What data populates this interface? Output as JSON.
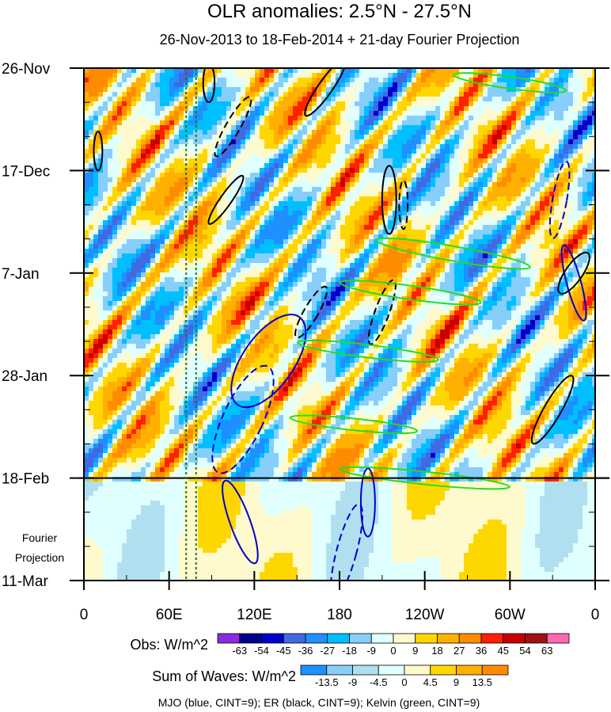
{
  "chart_data": {
    "type": "heatmap",
    "title": "OLR anomalies: 2.5°N - 27.5°N",
    "subtitle": "26-Nov-2013 to 18-Feb-2014 + 21-day Fourier Projection",
    "x_ticks": [
      "0",
      "60E",
      "120E",
      "180",
      "120W",
      "60W",
      "0"
    ],
    "x_values": [
      0,
      60,
      120,
      180,
      240,
      300,
      360
    ],
    "xlim": [
      0,
      360
    ],
    "y_ticks": [
      "26-Nov",
      "17-Dec",
      "7-Jan",
      "28-Jan",
      "18-Feb",
      "11-Mar"
    ],
    "y_days": [
      0,
      21,
      42,
      63,
      84,
      105
    ],
    "ylim_days": [
      0,
      105
    ],
    "projection_start_day": 84,
    "projection_label": [
      "Fourier",
      "Projection"
    ],
    "obs_legend": {
      "label": "Obs: W/m^2",
      "levels": [
        "-63",
        "-54",
        "-45",
        "-36",
        "-27",
        "-18",
        "-9",
        "0",
        "9",
        "18",
        "27",
        "36",
        "45",
        "54",
        "63"
      ],
      "colors": [
        "#8a2be2",
        "#00008b",
        "#0000cd",
        "#4169e1",
        "#1e90ff",
        "#00bfff",
        "#87cefa",
        "#e0ffff",
        "#fffacd",
        "#ffd700",
        "#ffb000",
        "#ff8c00",
        "#ff2000",
        "#c80000",
        "#a01010",
        "#ff69b4"
      ]
    },
    "waves_legend": {
      "label": "Sum of Waves: W/m^2",
      "levels": [
        "-13.5",
        "-9",
        "-4.5",
        "0",
        "4.5",
        "9",
        "13.5"
      ],
      "colors": [
        "#1e90ff",
        "#87cefa",
        "#b0e0f0",
        "#e0ffff",
        "#fffacd",
        "#ffd700",
        "#ffb000",
        "#ff8c00"
      ]
    },
    "contour_note": "MJO (blue, CINT=9); ER (black, CINT=9); Kelvin (green, CINT=9)",
    "series": [
      {
        "name": "MJO",
        "color": "#0000cc",
        "contours": [
          {
            "lon": 130,
            "day": 60,
            "rlon": 18,
            "rday": 11,
            "rot": 35,
            "dash": false
          },
          {
            "lon": 345,
            "day": 44,
            "rlon": 5,
            "rday": 8,
            "rot": -15,
            "dash": false
          },
          {
            "lon": 110,
            "day": 93,
            "rlon": 7,
            "rday": 9,
            "rot": -20,
            "dash": false
          },
          {
            "lon": 200,
            "day": 89,
            "rlon": 5,
            "rday": 7,
            "rot": 0,
            "dash": false
          },
          {
            "lon": 112,
            "day": 72,
            "rlon": 14,
            "rday": 12,
            "rot": 25,
            "dash": true
          },
          {
            "lon": 185,
            "day": 99,
            "rlon": 7,
            "rday": 10,
            "rot": 15,
            "dash": true
          },
          {
            "lon": 335,
            "day": 27,
            "rlon": 5,
            "rday": 8,
            "rot": 10,
            "dash": true
          }
        ]
      },
      {
        "name": "ER",
        "color": "#000000",
        "contours": [
          {
            "lon": 88,
            "day": 3,
            "rlon": 4,
            "rday": 4,
            "rot": 0,
            "dash": false
          },
          {
            "lon": 105,
            "day": 12,
            "rlon": 5,
            "rday": 7,
            "rot": 30,
            "dash": true
          },
          {
            "lon": 170,
            "day": 4,
            "rlon": 5,
            "rday": 7,
            "rot": 35,
            "dash": false
          },
          {
            "lon": 100,
            "day": 27,
            "rlon": 4,
            "rday": 6,
            "rot": 35,
            "dash": false
          },
          {
            "lon": 215,
            "day": 27,
            "rlon": 5,
            "rday": 7,
            "rot": 0,
            "dash": false
          },
          {
            "lon": 225,
            "day": 28,
            "rlon": 3,
            "rday": 5,
            "rot": 0,
            "dash": true
          },
          {
            "lon": 345,
            "day": 42,
            "rlon": 6,
            "rday": 5,
            "rot": 35,
            "dash": false
          },
          {
            "lon": 160,
            "day": 50,
            "rlon": 5,
            "rday": 6,
            "rot": 30,
            "dash": true
          },
          {
            "lon": 210,
            "day": 50,
            "rlon": 5,
            "rday": 7,
            "rot": 20,
            "dash": true
          },
          {
            "lon": 330,
            "day": 70,
            "rlon": 6,
            "rday": 8,
            "rot": 30,
            "dash": false
          },
          {
            "lon": 10,
            "day": 17,
            "rlon": 3,
            "rday": 4,
            "rot": 0,
            "dash": false
          }
        ]
      },
      {
        "name": "Kelvin",
        "color": "#22dd22",
        "contours": [
          {
            "lon": 300,
            "day": 3,
            "rlon": 40,
            "rday": 1.2,
            "rot": 8,
            "dash": false
          },
          {
            "lon": 260,
            "day": 38,
            "rlon": 55,
            "rday": 1.5,
            "rot": 10,
            "dash": false
          },
          {
            "lon": 230,
            "day": 46,
            "rlon": 50,
            "rday": 1.4,
            "rot": 8,
            "dash": false
          },
          {
            "lon": 200,
            "day": 58,
            "rlon": 50,
            "rday": 1.3,
            "rot": 7,
            "dash": false
          },
          {
            "lon": 190,
            "day": 73,
            "rlon": 45,
            "rday": 1.2,
            "rot": 6,
            "dash": false
          },
          {
            "lon": 240,
            "day": 84,
            "rlon": 60,
            "rday": 1.3,
            "rot": 6,
            "dash": false
          }
        ]
      }
    ]
  }
}
